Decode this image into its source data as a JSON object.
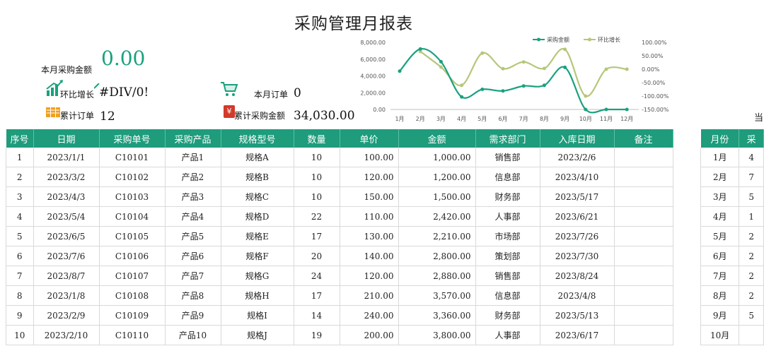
{
  "report": {
    "title": "采购管理月报表"
  },
  "kpis": {
    "monthly_amount_label": "本月采购金额",
    "monthly_amount_value": "0.00",
    "growth_label": "环比增长",
    "growth_value": "#DIV/0!",
    "monthly_orders_label": "本月订单",
    "monthly_orders_value": "0",
    "total_orders_label": "累计订单",
    "total_orders_value": "12",
    "total_amount_label": "累计采购金额",
    "total_amount_value": "34,030.00",
    "yen_symbol": "¥"
  },
  "colors": {
    "accent": "#1e9c7c",
    "line_amount": "#1aa17e",
    "line_growth": "#b5c77a",
    "kpi_value": "#1aa17e"
  },
  "chart_data": {
    "type": "line",
    "categories": [
      "1月",
      "2月",
      "3月",
      "4月",
      "5月",
      "6月",
      "7月",
      "8月",
      "9月",
      "10月",
      "11月",
      "12月"
    ],
    "series": [
      {
        "name": "采购金额",
        "axis": "left",
        "values": [
          4570,
          7210,
          5700,
          1500,
          2400,
          2210,
          2800,
          2880,
          5020,
          0,
          0,
          0
        ]
      },
      {
        "name": "环比增长",
        "axis": "right",
        "values": [
          null,
          66,
          8,
          -60,
          60,
          2,
          27,
          3,
          74,
          -100,
          0,
          0
        ]
      }
    ],
    "left_axis": {
      "ticks": [
        "0.00",
        "2,000.00",
        "4,000.00",
        "6,000.00",
        "8,000.00"
      ],
      "ylim": [
        0,
        8000
      ]
    },
    "right_axis": {
      "ticks": [
        "-150.00%",
        "-100.00%",
        "-50.00%",
        "0.00%",
        "50.00%",
        "100.00%"
      ],
      "ylim": [
        -150,
        100
      ]
    },
    "legend": "top-right",
    "grid": false
  },
  "table": {
    "headers": [
      "序号",
      "日期",
      "采购单号",
      "采购产品",
      "规格型号",
      "数量",
      "单价",
      "金额",
      "需求部门",
      "入库日期",
      "备注"
    ],
    "rows": [
      [
        "1",
        "2023/1/1",
        "C10101",
        "产品1",
        "规格A",
        "10",
        "100.00",
        "1,000.00",
        "销售部",
        "2023/2/6",
        ""
      ],
      [
        "2",
        "2023/3/2",
        "C10102",
        "产品2",
        "规格B",
        "10",
        "120.00",
        "1,200.00",
        "信息部",
        "2023/4/10",
        ""
      ],
      [
        "3",
        "2023/4/3",
        "C10103",
        "产品3",
        "规格C",
        "10",
        "150.00",
        "1,500.00",
        "财务部",
        "2023/5/17",
        ""
      ],
      [
        "4",
        "2023/5/4",
        "C10104",
        "产品4",
        "规格D",
        "22",
        "110.00",
        "2,420.00",
        "人事部",
        "2023/6/21",
        ""
      ],
      [
        "5",
        "2023/6/5",
        "C10105",
        "产品5",
        "规格E",
        "17",
        "130.00",
        "2,210.00",
        "市场部",
        "2023/7/26",
        ""
      ],
      [
        "6",
        "2023/7/6",
        "C10106",
        "产品6",
        "规格F",
        "20",
        "140.00",
        "2,800.00",
        "策划部",
        "2023/7/30",
        ""
      ],
      [
        "7",
        "2023/8/7",
        "C10107",
        "产品7",
        "规格G",
        "24",
        "120.00",
        "2,880.00",
        "销售部",
        "2023/8/24",
        ""
      ],
      [
        "8",
        "2023/1/8",
        "C10108",
        "产品8",
        "规格H",
        "17",
        "210.00",
        "3,570.00",
        "信息部",
        "2023/4/8",
        ""
      ],
      [
        "9",
        "2023/2/9",
        "C10109",
        "产品9",
        "规格I",
        "14",
        "240.00",
        "3,360.00",
        "财务部",
        "2023/5/13",
        ""
      ],
      [
        "10",
        "2023/2/10",
        "C10110",
        "产品10",
        "规格J",
        "19",
        "200.00",
        "3,800.00",
        "人事部",
        "2023/6/17",
        ""
      ]
    ]
  },
  "side_table": {
    "heading": "当",
    "headers": [
      "月份",
      "采"
    ],
    "rows": [
      [
        "1月",
        "4"
      ],
      [
        "2月",
        "7"
      ],
      [
        "3月",
        "5"
      ],
      [
        "4月",
        "1"
      ],
      [
        "5月",
        "2"
      ],
      [
        "6月",
        "2"
      ],
      [
        "7月",
        "2"
      ],
      [
        "8月",
        "2"
      ],
      [
        "9月",
        "5"
      ],
      [
        "10月",
        ""
      ]
    ]
  }
}
